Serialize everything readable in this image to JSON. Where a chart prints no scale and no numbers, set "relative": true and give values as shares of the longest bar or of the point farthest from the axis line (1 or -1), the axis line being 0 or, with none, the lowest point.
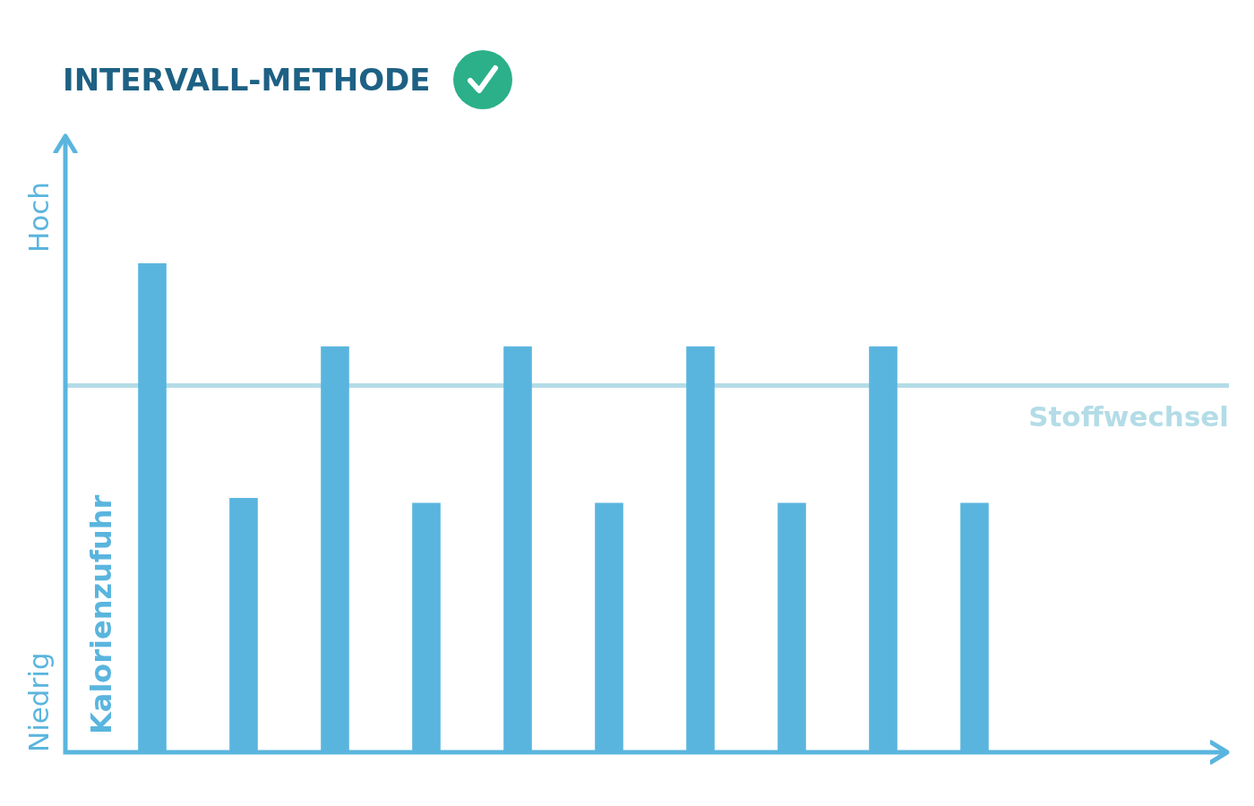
{
  "chart_data": {
    "type": "bar",
    "title": "INTERVALL-METHODE",
    "ylabel": "Kalorienzufuhr",
    "categories": [
      null,
      null,
      null,
      null,
      null,
      null,
      null,
      null,
      null,
      null
    ],
    "values": [
      1,
      0.52,
      0.83,
      0.51,
      0.83,
      0.51,
      0.83,
      0.51,
      0.83,
      0.51
    ],
    "color": "#5ab5de",
    "relative": true,
    "ref_lines": [
      {
        "axis": "y",
        "value": 0.75,
        "label": "Stoffwechsel",
        "color": "#b3dce7"
      }
    ],
    "annotations": [
      "Hoch",
      "Niedrig"
    ]
  }
}
